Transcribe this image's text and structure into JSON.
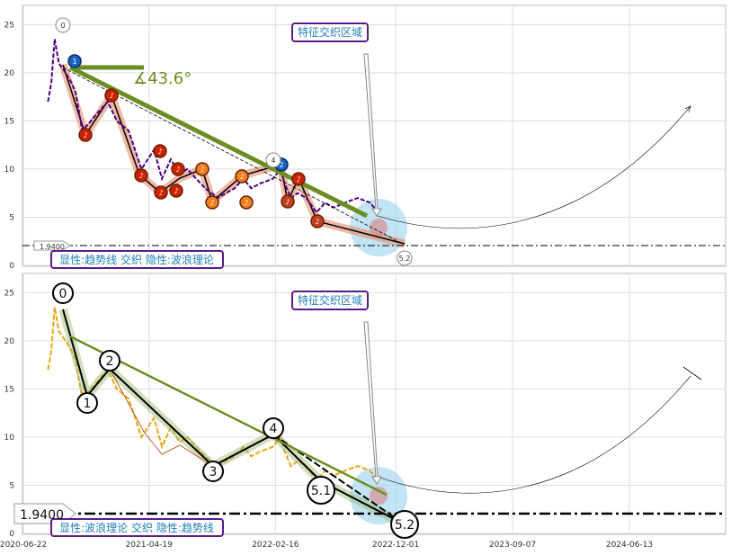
{
  "chart_data": [
    {
      "type": "line",
      "panel": "top",
      "ylim": [
        0,
        27
      ],
      "yticks": [
        "0",
        "5",
        "10",
        "15",
        "20",
        "25"
      ],
      "price_series": {
        "x": [
          "2020-08-20",
          "2020-08-28",
          "2020-09-05",
          "2020-09-15",
          "2020-10-01",
          "2020-10-15",
          "2020-10-25",
          "2020-11-10",
          "2020-12-01",
          "2020-12-20",
          "2021-01-10",
          "2021-02-01",
          "2021-03-01",
          "2021-04-01",
          "2021-05-01",
          "2021-05-20",
          "2021-06-10",
          "2021-07-01",
          "2021-07-20",
          "2021-08-10",
          "2021-09-01",
          "2021-10-01",
          "2021-10-20",
          "2021-11-10",
          "2021-12-01",
          "2021-12-20",
          "2022-01-10",
          "2022-02-10",
          "2022-02-28",
          "2022-03-10",
          "2022-03-25",
          "2022-04-10",
          "2022-05-01",
          "2022-05-25",
          "2022-06-15",
          "2022-07-05",
          "2022-08-01",
          "2022-09-01",
          "2022-10-01",
          "2022-10-20"
        ],
        "y": [
          17,
          19,
          23.5,
          21,
          20,
          19,
          18,
          14,
          15,
          16,
          17,
          15,
          14,
          10,
          12,
          9,
          11,
          9.5,
          10,
          9,
          8,
          7,
          7.5,
          8,
          9,
          8,
          8.5,
          9,
          10,
          8.5,
          7,
          7.5,
          7,
          5.5,
          6.5,
          6,
          6.5,
          7,
          6.5,
          5.5
        ]
      },
      "wave_labels": [
        "0",
        "4",
        "5.2"
      ],
      "trendline_angle": "∡43.6°",
      "horizontal_level": "1.9400",
      "zone_label": "特征交织区域",
      "caption": "显性:趋势线 交织 隐性:波浪理论",
      "circle_markers": [
        "1",
        "2"
      ]
    },
    {
      "type": "line",
      "panel": "bottom",
      "ylim": [
        0,
        27
      ],
      "yticks": [
        "0",
        "5",
        "10",
        "15",
        "20",
        "25"
      ],
      "xticks": [
        "2020-06-22",
        "2021-04-19",
        "2022-02-16",
        "2022-12-01",
        "2023-09-07",
        "2024-06-13"
      ],
      "wave_labels": [
        "0",
        "1",
        "2",
        "3",
        "4",
        "5.1",
        "5.2"
      ],
      "horizontal_level": "1.9400",
      "zone_label": "特征交织区域",
      "caption": "显性:波浪理论 交织 隐性:趋势线"
    }
  ],
  "colors": {
    "trend_green": "#6b8e23",
    "price_purple": "#4b0082",
    "price_orange": "#e6a817",
    "wave_red": "#cc2200",
    "wave_orange": "#f08020",
    "zone_blue": "#a8d8f0",
    "label_border": "#5a1a8a",
    "label_text": "#1f7fb5"
  }
}
